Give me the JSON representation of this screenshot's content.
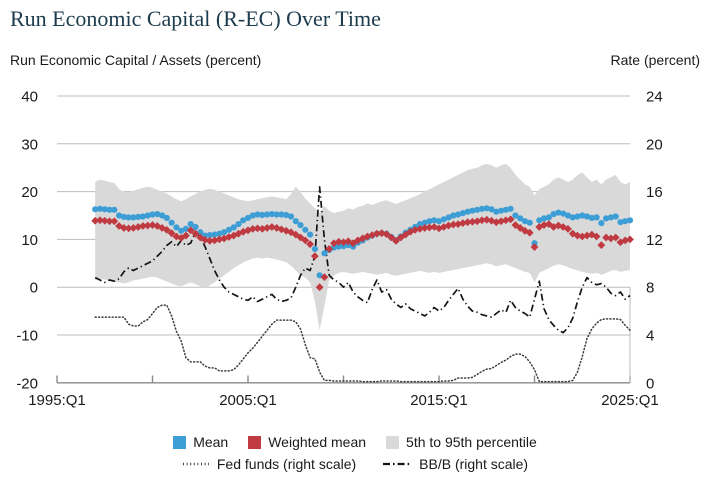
{
  "title": "Run Economic Capital (R-EC) Over Time",
  "left_axis_title": "Run Economic Capital / Assets (percent)",
  "right_axis_title": "Rate (percent)",
  "legend": {
    "mean": "Mean",
    "weighted_mean": "Weighted mean",
    "percentile": "5th to 95th percentile",
    "fed_funds": "Fed funds (right scale)",
    "bbb": "BB/B (right scale)"
  },
  "colors": {
    "mean_blue": "#3d9ed6",
    "weighted_red": "#bf3a41",
    "band_gray": "#d9d9d9",
    "fed_line": "#3c3c3c",
    "bbb_line": "#141414",
    "axis_gray": "#8a8a8a",
    "grid_gray": "#bdbdbd",
    "title_color": "#1c3b4d"
  },
  "chart_data": {
    "type": "line",
    "title": "Run Economic Capital (R-EC) Over Time",
    "x_start": 1997.0,
    "x_step": 0.25,
    "x_axis": {
      "range": [
        1995,
        2025.2
      ],
      "ticks": [
        1995,
        2000,
        2005,
        2010,
        2015,
        2020,
        2025
      ],
      "tick_label_years": [
        1995,
        2005,
        2015,
        2025
      ],
      "tick_labels": [
        "1995:Q1",
        "2005:Q1",
        "2015:Q1",
        "2025:Q1"
      ]
    },
    "left_axis": {
      "label": "Run Economic Capital / Assets (percent)",
      "ticks": [
        40,
        30,
        20,
        10,
        0,
        -10,
        -20
      ],
      "range": [
        -20,
        40
      ]
    },
    "right_axis": {
      "label": "Rate (percent)",
      "ticks": [
        24,
        20,
        16,
        12,
        8,
        4,
        0
      ],
      "range": [
        0,
        24
      ]
    },
    "grid": true,
    "legend_position": "bottom",
    "series": [
      {
        "name": "Mean",
        "type": "scatter-circle",
        "axis": "left",
        "values": [
          16.3,
          16.4,
          16.3,
          16.2,
          16.2,
          15.0,
          14.7,
          14.6,
          14.6,
          14.7,
          14.8,
          15.0,
          15.2,
          15.3,
          15.0,
          14.5,
          13.5,
          12.5,
          11.8,
          12.2,
          13.2,
          12.6,
          11.5,
          10.8,
          10.9,
          11.0,
          11.2,
          11.5,
          12.0,
          12.5,
          13.2,
          14.0,
          14.5,
          15.0,
          15.2,
          15.1,
          15.2,
          15.3,
          15.2,
          15.2,
          15.1,
          14.8,
          13.8,
          13.0,
          12.0,
          11.0,
          8.0,
          2.5,
          7.1,
          7.8,
          8.3,
          8.5,
          8.6,
          8.8,
          8.5,
          9.3,
          9.8,
          10.4,
          10.8,
          11.2,
          11.3,
          11.2,
          10.5,
          9.8,
          10.6,
          11.4,
          12.0,
          12.6,
          13.2,
          13.5,
          13.8,
          14.0,
          13.8,
          14.2,
          14.6,
          15.0,
          15.2,
          15.5,
          15.8,
          16.0,
          16.2,
          16.4,
          16.5,
          16.3,
          15.8,
          16.0,
          16.2,
          16.4,
          15.0,
          14.4,
          13.8,
          13.5,
          9.2,
          14.0,
          14.4,
          14.6,
          15.3,
          15.6,
          15.4,
          15.0,
          14.6,
          14.8,
          15.0,
          14.8,
          14.5,
          14.6,
          13.4,
          14.4,
          14.6,
          14.8,
          13.6,
          13.8,
          14.0
        ]
      },
      {
        "name": "Weighted mean",
        "type": "scatter-diamond",
        "axis": "left",
        "values": [
          13.9,
          14.0,
          13.9,
          13.8,
          13.8,
          12.8,
          12.4,
          12.3,
          12.4,
          12.6,
          12.8,
          12.9,
          13.0,
          12.8,
          12.4,
          12.0,
          11.3,
          10.6,
          10.3,
          10.8,
          11.9,
          11.2,
          10.4,
          9.9,
          9.7,
          9.8,
          10.0,
          10.2,
          10.5,
          10.8,
          11.2,
          11.6,
          11.9,
          12.2,
          12.3,
          12.2,
          12.4,
          12.6,
          12.4,
          12.1,
          11.8,
          11.5,
          11.0,
          10.4,
          9.8,
          9.0,
          6.5,
          0.0,
          2.1,
          8.0,
          9.2,
          9.5,
          9.4,
          9.6,
          9.2,
          9.8,
          10.2,
          10.6,
          10.9,
          11.2,
          11.3,
          11.1,
          10.4,
          9.7,
          10.4,
          11.0,
          11.6,
          12.0,
          12.2,
          12.4,
          12.5,
          12.6,
          12.3,
          12.6,
          12.9,
          13.1,
          13.2,
          13.4,
          13.6,
          13.7,
          13.8,
          14.0,
          14.1,
          13.9,
          13.6,
          13.8,
          14.0,
          14.2,
          13.0,
          12.4,
          11.8,
          11.4,
          8.4,
          12.6,
          13.0,
          13.2,
          12.6,
          12.9,
          12.6,
          12.2,
          11.2,
          10.8,
          10.6,
          10.8,
          11.0,
          10.6,
          8.8,
          10.4,
          10.2,
          10.4,
          9.4,
          9.8,
          10.0
        ]
      },
      {
        "name": "5th to 95th percentile",
        "type": "band",
        "axis": "left",
        "hi": [
          22.0,
          22.5,
          22.3,
          22.0,
          21.8,
          20.5,
          20.0,
          19.8,
          20.2,
          20.5,
          20.8,
          21.0,
          20.8,
          20.4,
          20.0,
          19.6,
          19.0,
          18.4,
          18.0,
          18.4,
          19.0,
          19.5,
          20.0,
          20.4,
          20.6,
          20.4,
          20.0,
          19.6,
          19.2,
          18.8,
          18.4,
          18.2,
          18.0,
          18.2,
          18.4,
          18.6,
          18.8,
          19.0,
          18.8,
          18.6,
          18.4,
          19.5,
          21.0,
          20.0,
          18.5,
          17.5,
          16.5,
          15.5,
          17.0,
          16.0,
          15.5,
          15.8,
          16.0,
          16.5,
          16.2,
          16.8,
          17.0,
          17.5,
          17.2,
          17.6,
          18.0,
          18.2,
          17.8,
          17.4,
          17.8,
          18.2,
          18.6,
          19.0,
          19.5,
          20.0,
          20.5,
          21.0,
          21.5,
          22.0,
          22.5,
          23.0,
          23.5,
          24.0,
          24.5,
          24.8,
          25.0,
          25.5,
          25.8,
          25.5,
          25.0,
          25.5,
          25.8,
          25.0,
          23.5,
          22.5,
          21.5,
          21.0,
          19.2,
          20.5,
          21.0,
          21.5,
          22.5,
          23.0,
          22.5,
          22.0,
          22.5,
          23.5,
          24.0,
          23.0,
          22.0,
          22.5,
          21.5,
          22.5,
          23.0,
          23.5,
          22.0,
          21.5,
          22.0
        ],
        "lo": [
          1.5,
          1.8,
          1.6,
          1.4,
          1.2,
          1.0,
          0.8,
          1.0,
          1.4,
          1.6,
          1.8,
          2.0,
          2.2,
          2.0,
          1.6,
          1.2,
          0.8,
          0.4,
          0.2,
          0.6,
          1.0,
          0.6,
          0.2,
          -0.2,
          0.4,
          1.0,
          1.8,
          2.5,
          3.2,
          4.0,
          4.6,
          5.2,
          5.6,
          6.0,
          6.2,
          6.0,
          6.2,
          6.0,
          5.8,
          5.5,
          5.2,
          4.5,
          3.5,
          2.5,
          2.0,
          1.0,
          -3.0,
          -9.0,
          -4.0,
          1.5,
          2.5,
          3.0,
          3.2,
          3.0,
          2.8,
          3.0,
          3.2,
          3.0,
          2.8,
          2.6,
          2.8,
          3.0,
          2.6,
          2.4,
          2.6,
          2.8,
          3.0,
          3.2,
          3.4,
          3.2,
          3.0,
          3.2,
          3.0,
          3.2,
          3.4,
          3.6,
          3.8,
          4.0,
          4.2,
          4.4,
          4.6,
          4.8,
          5.0,
          4.8,
          4.4,
          4.6,
          4.8,
          4.4,
          4.0,
          3.6,
          3.2,
          3.0,
          1.0,
          3.0,
          3.5,
          4.0,
          4.5,
          4.8,
          4.6,
          4.2,
          3.8,
          3.5,
          3.2,
          3.0,
          2.8,
          3.0,
          2.6,
          3.0,
          3.4,
          3.6,
          3.2,
          3.4,
          3.6
        ]
      },
      {
        "name": "Fed funds",
        "type": "line-dotted",
        "axis": "right",
        "values": [
          5.5,
          5.5,
          5.5,
          5.5,
          5.5,
          5.5,
          5.5,
          4.9,
          4.75,
          4.75,
          5.1,
          5.3,
          5.8,
          6.3,
          6.5,
          6.5,
          5.6,
          4.3,
          3.5,
          2.1,
          1.75,
          1.75,
          1.75,
          1.4,
          1.25,
          1.25,
          1.0,
          1.0,
          1.0,
          1.1,
          1.5,
          2.0,
          2.5,
          2.9,
          3.4,
          3.9,
          4.4,
          4.9,
          5.25,
          5.25,
          5.25,
          5.25,
          5.1,
          4.5,
          3.2,
          2.1,
          2.0,
          0.9,
          0.2,
          0.2,
          0.15,
          0.15,
          0.15,
          0.15,
          0.15,
          0.15,
          0.1,
          0.1,
          0.1,
          0.1,
          0.15,
          0.15,
          0.15,
          0.15,
          0.1,
          0.1,
          0.1,
          0.1,
          0.1,
          0.1,
          0.1,
          0.1,
          0.1,
          0.15,
          0.15,
          0.2,
          0.4,
          0.4,
          0.4,
          0.45,
          0.7,
          0.95,
          1.15,
          1.2,
          1.45,
          1.7,
          1.9,
          2.2,
          2.4,
          2.4,
          2.2,
          1.75,
          1.1,
          0.1,
          0.1,
          0.1,
          0.1,
          0.1,
          0.1,
          0.1,
          0.2,
          0.9,
          2.2,
          3.7,
          4.5,
          5.0,
          5.3,
          5.35,
          5.35,
          5.35,
          5.3,
          4.8,
          4.4
        ]
      },
      {
        "name": "BB/B",
        "type": "line-dashdot",
        "axis": "right",
        "values": [
          8.8,
          8.6,
          8.4,
          8.6,
          8.5,
          8.7,
          9.3,
          9.6,
          9.4,
          9.6,
          9.8,
          10.0,
          10.2,
          10.6,
          11.0,
          11.5,
          11.8,
          11.4,
          11.9,
          11.5,
          11.7,
          12.6,
          12.2,
          11.4,
          10.4,
          9.4,
          8.6,
          8.0,
          7.6,
          7.4,
          7.2,
          7.0,
          6.9,
          7.2,
          6.8,
          7.0,
          7.2,
          7.4,
          7.0,
          6.8,
          6.9,
          7.1,
          8.0,
          9.0,
          9.6,
          9.4,
          10.6,
          16.4,
          12.0,
          9.0,
          8.6,
          8.4,
          8.0,
          8.4,
          7.6,
          7.2,
          6.9,
          6.7,
          7.8,
          8.6,
          7.6,
          7.8,
          7.0,
          6.6,
          6.3,
          6.6,
          6.2,
          6.0,
          5.8,
          5.6,
          5.9,
          6.3,
          6.0,
          6.3,
          6.9,
          7.4,
          7.9,
          7.0,
          6.4,
          6.0,
          5.9,
          5.7,
          5.6,
          5.5,
          5.8,
          6.1,
          5.9,
          6.9,
          6.3,
          6.0,
          5.8,
          5.5,
          7.0,
          8.5,
          6.2,
          5.3,
          4.8,
          4.4,
          4.2,
          4.6,
          5.4,
          6.8,
          8.0,
          8.8,
          8.4,
          8.2,
          8.3,
          8.0,
          7.5,
          7.3,
          7.6,
          7.0,
          7.3
        ]
      }
    ]
  }
}
